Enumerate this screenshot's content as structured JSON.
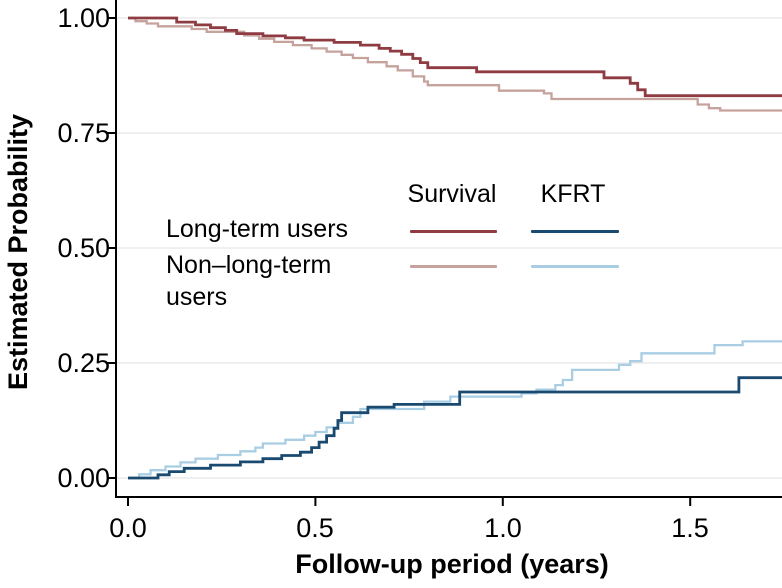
{
  "figure": {
    "y_axis_title": "Estimated Probability",
    "x_axis_title": "Follow-up period (years)"
  },
  "legend": {
    "column_headers": [
      {
        "label": "Survival"
      },
      {
        "label": "KFRT"
      }
    ],
    "rows": [
      {
        "label": "Long-term users",
        "survival_color": "#8e3b41",
        "kfrt_color": "#1a4a70"
      },
      {
        "label": "Non–long-term users",
        "survival_color": "#c6a29d",
        "kfrt_color": "#a9cee4"
      }
    ]
  },
  "colors": {
    "background": "#ffffff",
    "axis": "#000000",
    "gridline": "#eaeaea",
    "text": "#000000"
  },
  "chart_data": {
    "type": "line",
    "subtype": "kaplan-meier-step",
    "title": "",
    "xlabel": "Follow-up period (years)",
    "ylabel": "Estimated Probability",
    "xlim": [
      0,
      1.745
    ],
    "ylim": [
      0,
      1.0
    ],
    "grid": "horizontal",
    "legend_position": "inside-center-left",
    "x_ticks": [
      {
        "value": 0.0,
        "label": "0.0"
      },
      {
        "value": 0.5,
        "label": "0.5"
      },
      {
        "value": 1.0,
        "label": "1.0"
      },
      {
        "value": 1.5,
        "label": "1.5"
      }
    ],
    "y_ticks": [
      {
        "value": 1.0,
        "label": "1.00"
      },
      {
        "value": 0.75,
        "label": "0.75"
      },
      {
        "value": 0.5,
        "label": "0.50"
      },
      {
        "value": 0.25,
        "label": "0.25"
      },
      {
        "value": 0.0,
        "label": "0.00"
      }
    ],
    "series": [
      {
        "name": "Survival — Non–long-term users",
        "group": "Non–long-term users",
        "measure": "Survival",
        "color": "#c6a29d",
        "stroke_width": 2.3,
        "points": [
          [
            0,
            1.0
          ],
          [
            0.02,
            0.993
          ],
          [
            0.05,
            0.988
          ],
          [
            0.08,
            0.982
          ],
          [
            0.17,
            0.976
          ],
          [
            0.21,
            0.97
          ],
          [
            0.31,
            0.962
          ],
          [
            0.35,
            0.955
          ],
          [
            0.39,
            0.948
          ],
          [
            0.44,
            0.941
          ],
          [
            0.49,
            0.934
          ],
          [
            0.53,
            0.927
          ],
          [
            0.57,
            0.92
          ],
          [
            0.6,
            0.913
          ],
          [
            0.64,
            0.904
          ],
          [
            0.69,
            0.895
          ],
          [
            0.72,
            0.886
          ],
          [
            0.76,
            0.873
          ],
          [
            0.79,
            0.862
          ],
          [
            0.8,
            0.854
          ],
          [
            0.99,
            0.842
          ],
          [
            1.11,
            0.836
          ],
          [
            1.13,
            0.824
          ],
          [
            1.52,
            0.812
          ],
          [
            1.55,
            0.804
          ],
          [
            1.58,
            0.799
          ],
          [
            1.745,
            0.799
          ]
        ]
      },
      {
        "name": "KFRT — Non–long-term users",
        "group": "Non–long-term users",
        "measure": "KFRT",
        "color": "#a9cee4",
        "stroke_width": 2.3,
        "points": [
          [
            0,
            0.0
          ],
          [
            0.03,
            0.008
          ],
          [
            0.06,
            0.017
          ],
          [
            0.1,
            0.025
          ],
          [
            0.14,
            0.034
          ],
          [
            0.18,
            0.042
          ],
          [
            0.24,
            0.05
          ],
          [
            0.3,
            0.058
          ],
          [
            0.34,
            0.066
          ],
          [
            0.36,
            0.075
          ],
          [
            0.42,
            0.083
          ],
          [
            0.47,
            0.092
          ],
          [
            0.5,
            0.1
          ],
          [
            0.53,
            0.11
          ],
          [
            0.56,
            0.12
          ],
          [
            0.6,
            0.133
          ],
          [
            0.62,
            0.15
          ],
          [
            0.79,
            0.166
          ],
          [
            0.86,
            0.177
          ],
          [
            1.05,
            0.184
          ],
          [
            1.09,
            0.192
          ],
          [
            1.14,
            0.202
          ],
          [
            1.16,
            0.213
          ],
          [
            1.185,
            0.235
          ],
          [
            1.31,
            0.246
          ],
          [
            1.34,
            0.254
          ],
          [
            1.37,
            0.271
          ],
          [
            1.565,
            0.289
          ],
          [
            1.64,
            0.297
          ],
          [
            1.745,
            0.297
          ]
        ]
      },
      {
        "name": "Survival — Long-term users",
        "group": "Long-term users",
        "measure": "Survival",
        "color": "#8e3b41",
        "stroke_width": 2.8,
        "points": [
          [
            0,
            1.0
          ],
          [
            0.13,
            0.991
          ],
          [
            0.18,
            0.985
          ],
          [
            0.22,
            0.979
          ],
          [
            0.26,
            0.973
          ],
          [
            0.29,
            0.966
          ],
          [
            0.36,
            0.961
          ],
          [
            0.42,
            0.957
          ],
          [
            0.47,
            0.952
          ],
          [
            0.55,
            0.947
          ],
          [
            0.62,
            0.941
          ],
          [
            0.67,
            0.934
          ],
          [
            0.7,
            0.928
          ],
          [
            0.73,
            0.921
          ],
          [
            0.76,
            0.912
          ],
          [
            0.78,
            0.903
          ],
          [
            0.8,
            0.892
          ],
          [
            0.93,
            0.883
          ],
          [
            1.27,
            0.87
          ],
          [
            1.34,
            0.858
          ],
          [
            1.36,
            0.844
          ],
          [
            1.38,
            0.831
          ],
          [
            1.745,
            0.831
          ]
        ]
      },
      {
        "name": "KFRT — Long-term users",
        "group": "Long-term users",
        "measure": "KFRT",
        "color": "#1a4a70",
        "stroke_width": 2.8,
        "points": [
          [
            0,
            0.0
          ],
          [
            0.08,
            0.007
          ],
          [
            0.11,
            0.014
          ],
          [
            0.15,
            0.021
          ],
          [
            0.22,
            0.028
          ],
          [
            0.3,
            0.035
          ],
          [
            0.36,
            0.042
          ],
          [
            0.41,
            0.049
          ],
          [
            0.46,
            0.056
          ],
          [
            0.49,
            0.066
          ],
          [
            0.51,
            0.078
          ],
          [
            0.53,
            0.092
          ],
          [
            0.55,
            0.108
          ],
          [
            0.56,
            0.125
          ],
          [
            0.57,
            0.142
          ],
          [
            0.64,
            0.154
          ],
          [
            0.71,
            0.16
          ],
          [
            0.885,
            0.187
          ],
          [
            1.63,
            0.218
          ],
          [
            1.745,
            0.218
          ]
        ]
      }
    ]
  }
}
